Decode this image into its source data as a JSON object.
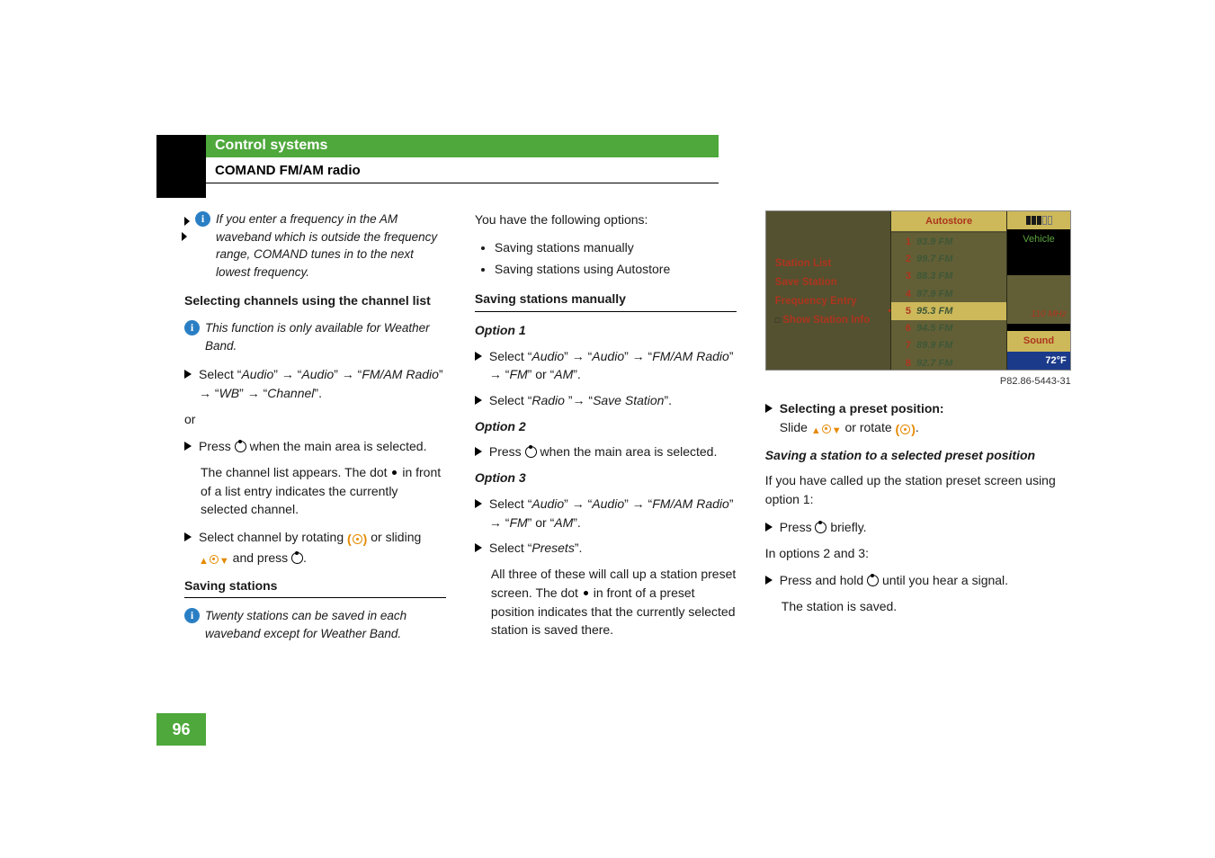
{
  "header": {
    "section": "Control systems",
    "subsection": "COMAND FM/AM radio"
  },
  "page_number": "96",
  "col1": {
    "note_cont": "If you enter a frequency in the AM waveband which is outside the frequency range, COMAND tunes in to the next lowest frequency.",
    "h_sel_channels": "Selecting channels using the channel list",
    "note_wb": "This function is only available for Weather Band.",
    "step_sel_audio_pre": "Select “",
    "audio": "Audio",
    "fmam": "FM/AM Radio",
    "wb": "WB",
    "channel": "Channel",
    "or": "or",
    "step_press_main": "Press ",
    "step_press_main2": " when the main area is selected.",
    "channel_list_p": "The channel list appears. The dot ",
    "channel_list_p2": " in front of a list entry indicates the currently selected channel.",
    "step_sel_channel": "Select channel by rotating ",
    "or_sliding": " or sliding ",
    "and_press": " and press ",
    "h_saving": "Saving stations",
    "note_twenty": "Twenty stations can be saved in each waveband except for Weather Band."
  },
  "col2": {
    "intro": "You have the following options:",
    "b1": "Saving stations manually",
    "b2": "Saving stations using Autostore",
    "h_sav_man": "Saving stations manually",
    "opt1": "Option 1",
    "step_sel_audio_pre": "Select “",
    "audio": "Audio",
    "fmam": "FM/AM Radio",
    "fm": "FM",
    "am": "AM",
    "orword": " or ",
    "step_sel_radio": "Select “",
    "radio": "Radio ",
    "save_station": "Save Station",
    "opt2": "Option 2",
    "step_press_main": "Press ",
    "step_press_main2": " when the main area is selected.",
    "opt3": "Option 3",
    "presets": "Presets",
    "step_sel_presets": "Select “",
    "all_three": "All three of these will call up a station preset screen. The dot ",
    "all_three2": " in front of a preset position indicates that the currently selected station is saved there."
  },
  "col3": {
    "screenshot": {
      "left_items": [
        "Station List",
        "Save Station",
        "Frequency Entry",
        "Show Station Info"
      ],
      "autostore": "Autostore",
      "presets": [
        {
          "n": "1",
          "f": "93.9 FM"
        },
        {
          "n": "2",
          "f": "99.7 FM"
        },
        {
          "n": "3",
          "f": "88.3 FM"
        },
        {
          "n": "4",
          "f": "97.9 FM"
        },
        {
          "n": "5",
          "f": "95.3 FM"
        },
        {
          "n": "6",
          "f": "94.5 FM"
        },
        {
          "n": "7",
          "f": "89.9 FM"
        },
        {
          "n": "8",
          "f": "92.7 FM"
        }
      ],
      "selected_index": 4,
      "vehicle": "Vehicle",
      "mhz": "110 MHz",
      "sound": "Sound",
      "temp": "72°F",
      "caption": "P82.86-5443-31"
    },
    "step_sel_preset": "Selecting a preset position:",
    "slide_pre": "Slide ",
    "or_rotate": " or rotate ",
    "h_sav_sel": "Saving a station to a selected preset position",
    "ifcalled": "If you have called up the station preset screen using option 1:",
    "press_brief": "Press ",
    "briefly": " briefly.",
    "in23": "In options 2 and 3:",
    "press_hold": "Press and hold ",
    "until_sig": " until you hear a signal.",
    "saved": "The station is saved."
  },
  "colors": {
    "green": "#4ea83b",
    "info": "#2a7fc4",
    "orange": "#e58a00"
  }
}
